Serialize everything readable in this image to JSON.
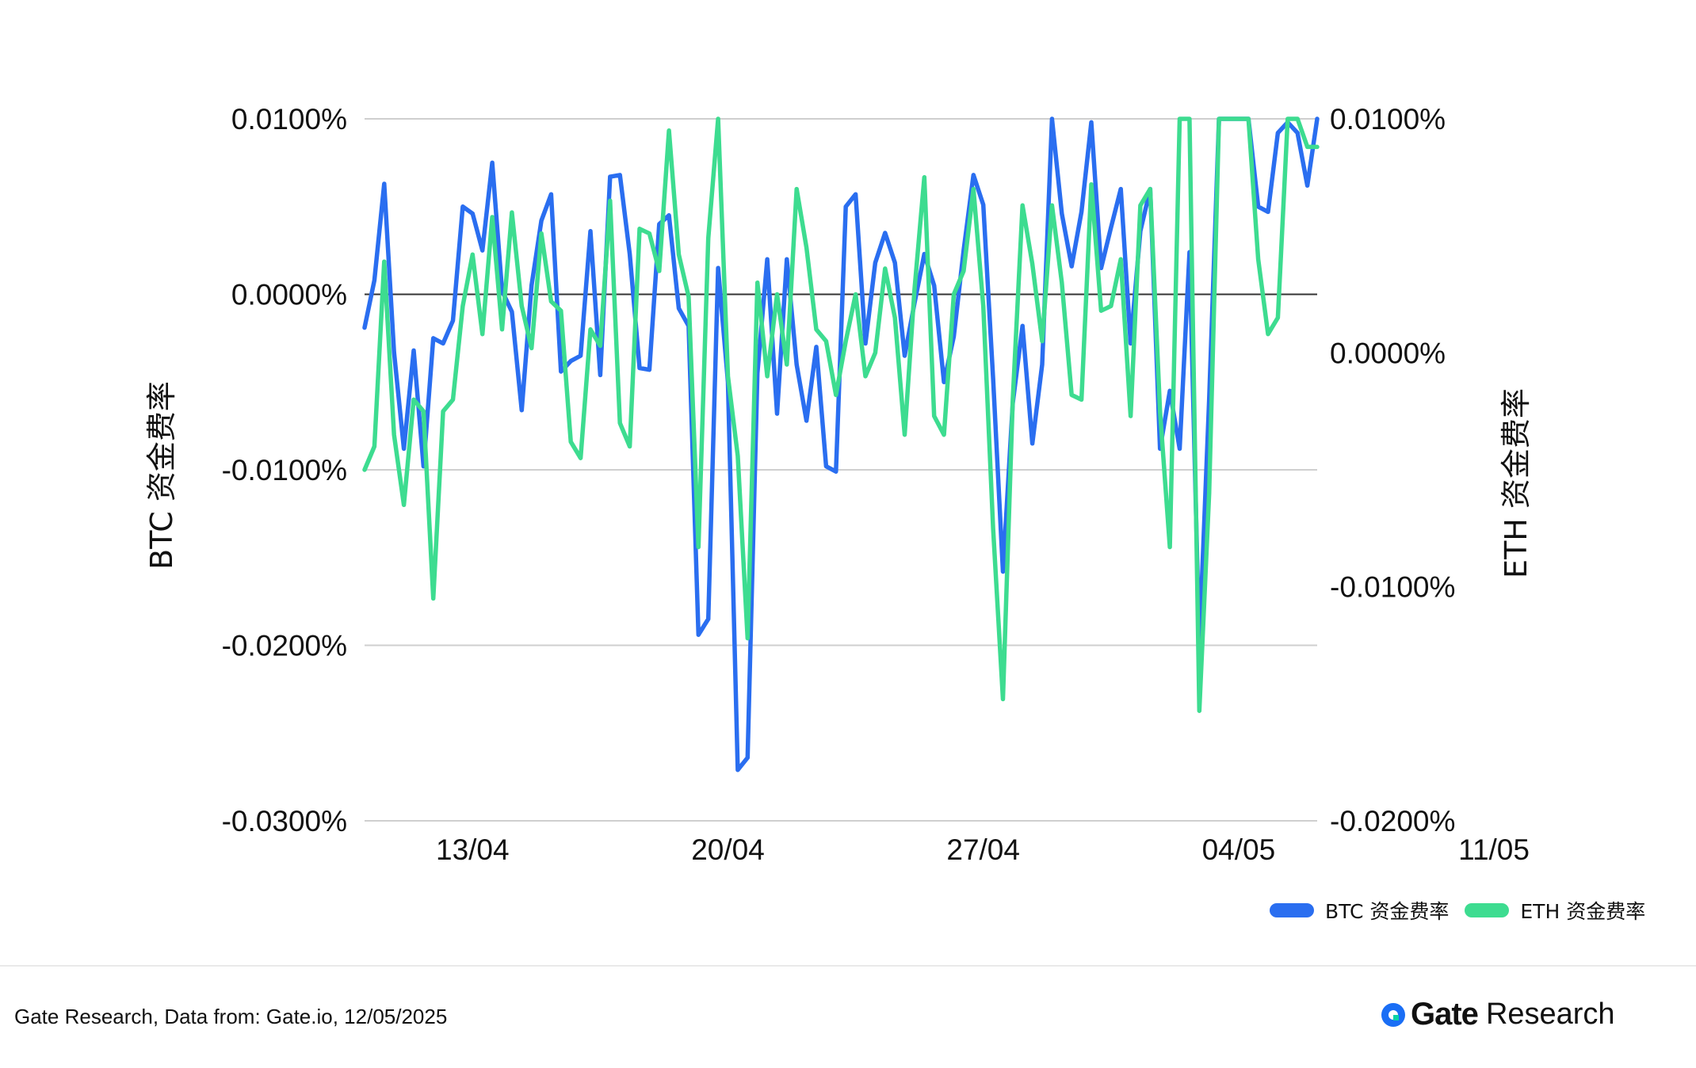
{
  "chart_data": {
    "type": "line",
    "ylabel_left": "BTC  资金费率",
    "ylabel_right": "ETH 资金费率",
    "x_tick_labels": [
      "13/04",
      "20/04",
      "27/04",
      "04/05",
      "11/05"
    ],
    "x_tick_index": [
      11,
      37,
      63,
      89,
      115
    ],
    "left_axis": {
      "ylim": [
        -0.03,
        0.01
      ],
      "ticks": [
        0.01,
        0.0,
        -0.01,
        -0.02,
        -0.03
      ],
      "tick_labels": [
        "0.0100%",
        "0.0000%",
        "-0.0100%",
        "-0.0200%",
        "-0.0300%"
      ]
    },
    "right_axis": {
      "ylim": [
        -0.02,
        0.01
      ],
      "ticks": [
        0.01,
        0.0,
        -0.01,
        -0.02
      ],
      "tick_labels": [
        "0.0100%",
        "0.0000%",
        "-0.0100%",
        "-0.0200%"
      ]
    },
    "grid": true,
    "legend_position": "bottom-right",
    "series": [
      {
        "name": "BTC 资金费率",
        "axis": "left",
        "color": "#2a6ef0",
        "values": [
          -0.0019,
          0.0008,
          0.0063,
          -0.0033,
          -0.0088,
          -0.0032,
          -0.0098,
          -0.0025,
          -0.0028,
          -0.0015,
          0.005,
          0.0046,
          0.0025,
          0.0075,
          0.0002,
          -0.001,
          -0.0066,
          0.0005,
          0.0042,
          0.0057,
          -0.0044,
          -0.0038,
          -0.0035,
          0.0036,
          -0.0046,
          0.0067,
          0.0068,
          0.0023,
          -0.0042,
          -0.0043,
          0.004,
          0.0045,
          -0.0008,
          -0.0018,
          -0.0194,
          -0.0185,
          0.0015,
          -0.005,
          -0.0271,
          -0.0264,
          -0.0045,
          0.002,
          -0.0068,
          0.002,
          -0.004,
          -0.0072,
          -0.003,
          -0.0098,
          -0.0101,
          0.005,
          0.0057,
          -0.0028,
          0.0018,
          0.0035,
          0.0018,
          -0.0035,
          -0.0005,
          0.0023,
          0.0005,
          -0.005,
          -0.0024,
          0.0025,
          0.0068,
          0.0051,
          -0.0048,
          -0.0158,
          -0.0062,
          -0.0018,
          -0.0085,
          -0.004,
          0.01,
          0.0046,
          0.0016,
          0.0047,
          0.0098,
          0.0015,
          0.0038,
          0.006,
          -0.0028,
          0.0036,
          0.006,
          -0.0088,
          -0.0055,
          -0.0088,
          0.0024,
          -0.02,
          -0.006,
          0.01,
          0.01,
          0.01,
          0.01,
          0.005,
          0.0047,
          0.0092,
          0.0098,
          0.0092,
          0.0062,
          0.01
        ]
      },
      {
        "name": "ETH 资金费率",
        "axis": "right",
        "color": "#3ddc90",
        "values": [
          -0.005,
          -0.004,
          0.0039,
          -0.0035,
          -0.0065,
          -0.002,
          -0.0025,
          -0.0105,
          -0.0025,
          -0.002,
          0.002,
          0.0042,
          0.0008,
          0.0058,
          0.001,
          0.006,
          0.002,
          0.0002,
          0.0051,
          0.0022,
          0.0018,
          -0.0038,
          -0.0045,
          0.001,
          0.0003,
          0.0065,
          -0.003,
          -0.004,
          0.0053,
          0.0051,
          0.0035,
          0.0095,
          0.0042,
          0.0024,
          -0.0083,
          0.0049,
          0.01,
          -0.001,
          -0.0044,
          -0.0122,
          0.003,
          -0.001,
          0.0025,
          -0.0005,
          0.007,
          0.0045,
          0.001,
          0.0005,
          -0.0018,
          0.0005,
          0.0025,
          -0.001,
          0.0,
          0.0036,
          0.0015,
          -0.0035,
          0.0027,
          0.0075,
          -0.0027,
          -0.0035,
          0.0025,
          0.0035,
          0.007,
          0.002,
          -0.0075,
          -0.0148,
          -0.002,
          0.0063,
          0.0038,
          0.0005,
          0.0063,
          0.003,
          -0.0018,
          -0.002,
          0.0072,
          0.0018,
          0.002,
          0.004,
          -0.0027,
          0.0063,
          0.007,
          -0.0025,
          -0.0083,
          0.01,
          0.01,
          -0.0153,
          -0.006,
          0.01,
          0.01,
          0.01,
          0.01,
          0.004,
          0.0008,
          0.0015,
          0.01,
          0.01,
          0.0088,
          0.0088
        ]
      }
    ]
  },
  "footer": {
    "source_text": "Gate Research, Data from: Gate.io, 12/05/2025",
    "brand_name": "Gate",
    "brand_sub": "Research"
  },
  "logo_color": "#1a6ef5"
}
